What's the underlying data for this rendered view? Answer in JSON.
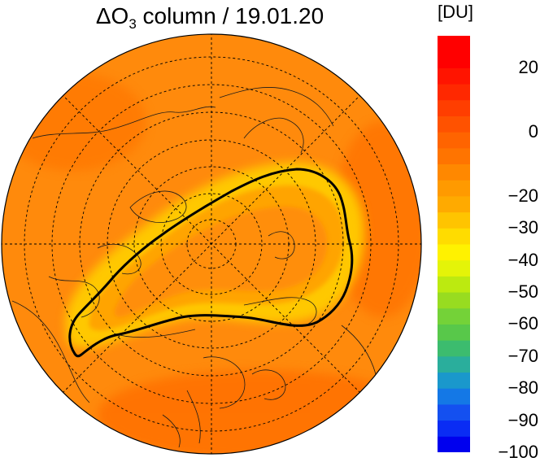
{
  "title": {
    "prefix": "ΔO",
    "subscript": "3",
    "suffix": " column / 19.01.20"
  },
  "colorbar": {
    "unit": "[DU]",
    "min": -100,
    "max": 30,
    "step": 5,
    "ticks": [
      {
        "value": 20,
        "label": "20"
      },
      {
        "value": 0,
        "label": "0"
      },
      {
        "value": -20,
        "label": "−20"
      },
      {
        "value": -30,
        "label": "−30"
      },
      {
        "value": -40,
        "label": "−40"
      },
      {
        "value": -50,
        "label": "−50"
      },
      {
        "value": -60,
        "label": "−60"
      },
      {
        "value": -70,
        "label": "−70"
      },
      {
        "value": -80,
        "label": "−80"
      },
      {
        "value": -90,
        "label": "−90"
      },
      {
        "value": -100,
        "label": "−100"
      }
    ],
    "colors": [
      "#0000ee",
      "#0a2cf4",
      "#1450f0",
      "#1478e6",
      "#1a98cc",
      "#2aae9c",
      "#3cbc6e",
      "#58c84a",
      "#74d238",
      "#98dc20",
      "#bcea10",
      "#e4f408",
      "#fff200",
      "#ffdc00",
      "#ffc400",
      "#ffaa00",
      "#ff9a00",
      "#ff8800",
      "#ff7400",
      "#ff6400",
      "#ff5200",
      "#ff3e00",
      "#ff2800",
      "#ff1400",
      "#ff0000",
      "#ff0000"
    ]
  },
  "map": {
    "projection": "north polar stereographic",
    "background_color": "#ff8a0c",
    "contour_color": "#000000"
  }
}
